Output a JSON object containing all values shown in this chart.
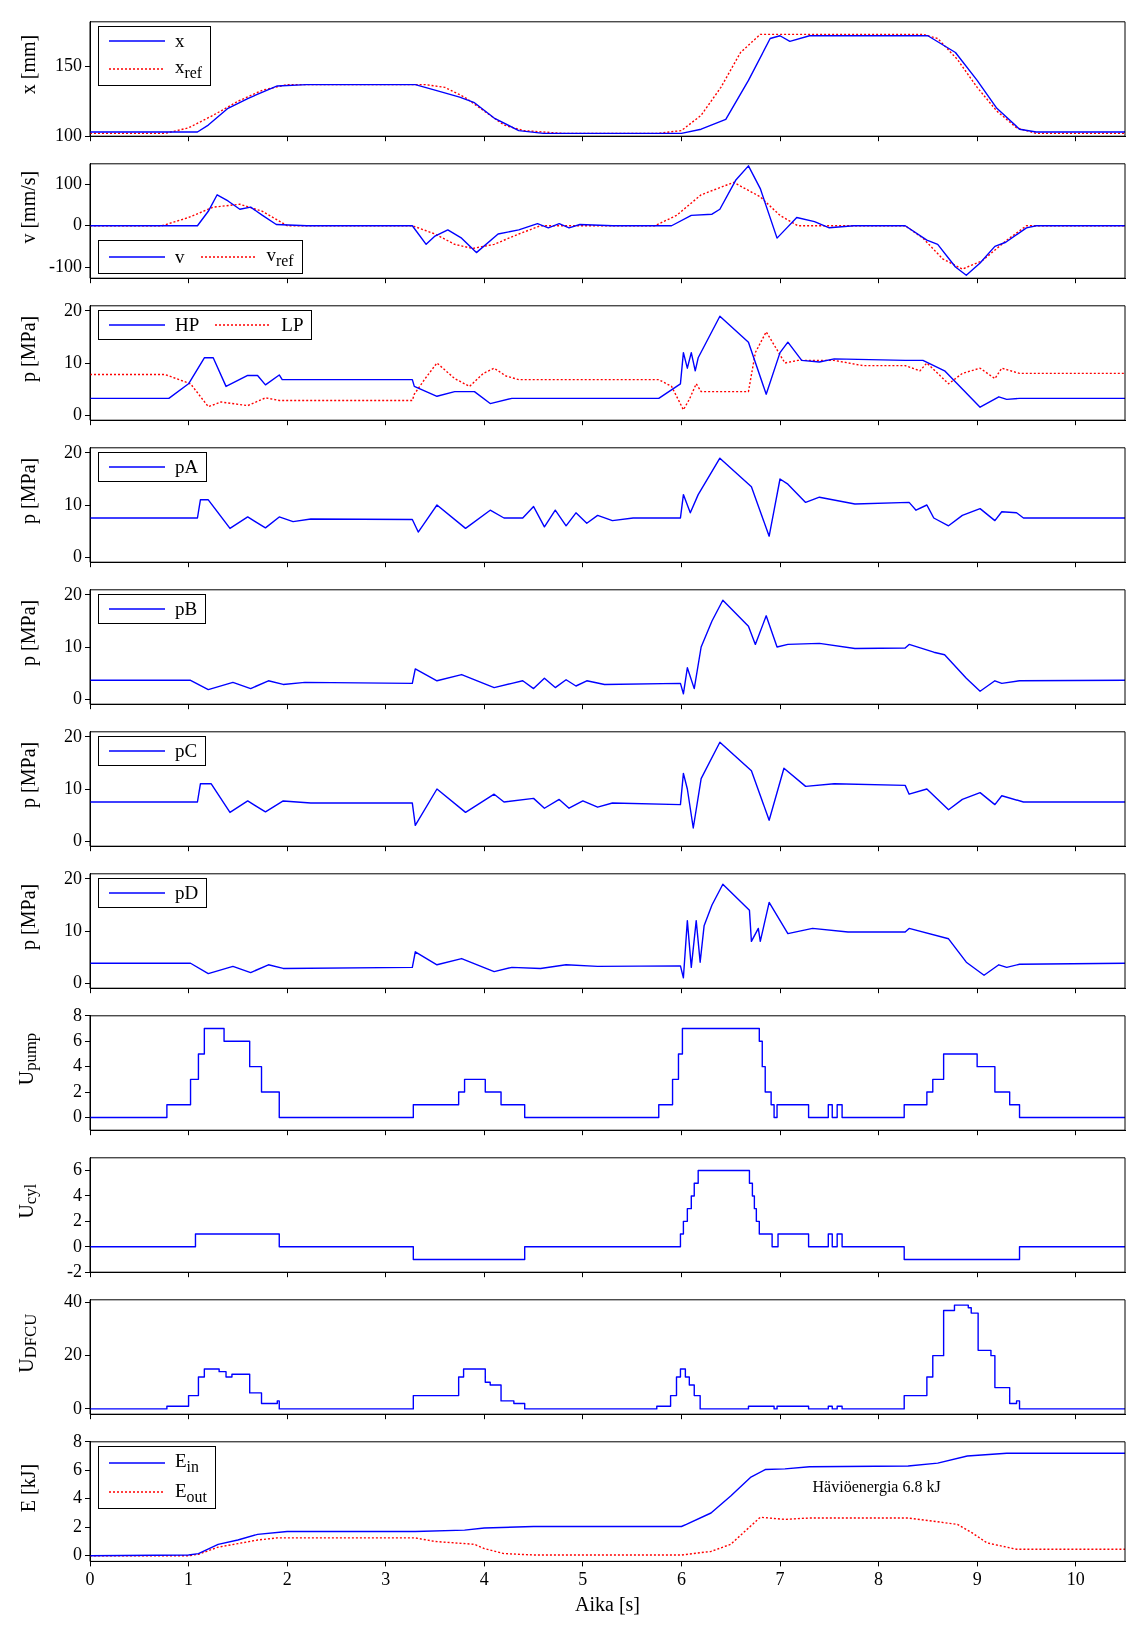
{
  "chart_data": [
    {
      "type": "line",
      "ylabel": "x [mm]",
      "xlim": [
        0,
        10.5
      ],
      "xticks": [
        0,
        1,
        2,
        3,
        4,
        5,
        6,
        7,
        8,
        9,
        10
      ],
      "ylim": [
        100,
        182
      ],
      "yticks": [
        100,
        150
      ],
      "tick_labels": "y",
      "legend": "top left",
      "series": [
        {
          "name": "x",
          "color": "#0000ff",
          "line_style": "solid",
          "x": [
            0,
            1.09,
            1.2,
            1.4,
            1.6,
            1.9,
            2.2,
            3.3,
            3.5,
            3.75,
            3.9,
            4.1,
            4.35,
            4.6,
            5.0,
            6.0,
            6.2,
            6.45,
            6.68,
            6.9,
            7.0,
            7.1,
            7.3,
            8.5,
            8.78,
            9.0,
            9.2,
            9.43,
            9.6,
            10.5
          ],
          "values": [
            103,
            103,
            108,
            120,
            127,
            136,
            137,
            137,
            133,
            128,
            124,
            113,
            104,
            102,
            102,
            102,
            105,
            112,
            140,
            170,
            172,
            168,
            172,
            172,
            160,
            140,
            120,
            105,
            103,
            103
          ]
        },
        {
          "name": "x$_{ref}$",
          "color": "#ff0000",
          "line_style": "dotted",
          "x": [
            0,
            0.76,
            1.0,
            1.25,
            1.5,
            1.75,
            2.0,
            3.4,
            3.6,
            3.8,
            4.0,
            4.2,
            4.4,
            4.8,
            5.75,
            6.0,
            6.2,
            6.4,
            6.6,
            6.8,
            8.45,
            8.6,
            8.8,
            9.0,
            9.2,
            9.4,
            9.6,
            10.5
          ],
          "values": [
            102,
            102,
            106,
            115,
            125,
            133,
            137,
            137,
            135,
            128,
            118,
            108,
            104,
            102,
            102,
            104,
            115,
            135,
            160,
            173,
            173,
            170,
            155,
            135,
            118,
            106,
            102,
            102
          ]
        }
      ]
    },
    {
      "type": "line",
      "ylabel": "v [mm/s]",
      "xlim": [
        0,
        10.5
      ],
      "xticks": [
        0,
        1,
        2,
        3,
        4,
        5,
        6,
        7,
        8,
        9,
        10
      ],
      "ylim": [
        -127,
        150
      ],
      "yticks": [
        -100,
        0,
        100
      ],
      "tick_labels": "y",
      "legend": "bottom left",
      "series": [
        {
          "name": "v",
          "color": "#0000ff",
          "line_style": "solid",
          "x": [
            0,
            1.09,
            1.2,
            1.29,
            1.4,
            1.52,
            1.63,
            1.75,
            1.89,
            2.2,
            3.27,
            3.41,
            3.5,
            3.63,
            3.77,
            3.92,
            4.14,
            4.35,
            4.54,
            4.65,
            4.76,
            4.86,
            4.97,
            5.3,
            5.9,
            6.1,
            6.31,
            6.39,
            6.55,
            6.68,
            6.8,
            6.97,
            7.05,
            7.17,
            7.35,
            7.5,
            7.75,
            8.27,
            8.49,
            8.6,
            8.78,
            8.89,
            9.03,
            9.18,
            9.29,
            9.5,
            9.6,
            10.5
          ],
          "values": [
            0,
            0,
            35,
            75,
            60,
            40,
            45,
            25,
            3,
            0,
            0,
            -45,
            -25,
            -10,
            -30,
            -65,
            -20,
            -10,
            5,
            -5,
            5,
            -5,
            3,
            0,
            0,
            25,
            28,
            40,
            110,
            145,
            90,
            -30,
            -10,
            20,
            10,
            -5,
            0,
            0,
            -35,
            -45,
            -100,
            -120,
            -90,
            -50,
            -40,
            -5,
            0,
            0
          ]
        },
        {
          "name": "v$_{ref}$",
          "color": "#ff0000",
          "line_style": "dotted",
          "x": [
            0,
            0.73,
            1.0,
            1.25,
            1.52,
            1.75,
            2.0,
            3.27,
            3.5,
            3.7,
            3.88,
            4.1,
            4.35,
            4.57,
            5.73,
            5.95,
            6.2,
            6.53,
            6.8,
            7.0,
            7.18,
            8.27,
            8.45,
            8.65,
            8.85,
            9.05,
            9.3,
            9.5,
            10.5
          ],
          "values": [
            0,
            0,
            20,
            45,
            52,
            35,
            0,
            0,
            -20,
            -45,
            -55,
            -45,
            -20,
            0,
            0,
            25,
            75,
            105,
            70,
            25,
            0,
            0,
            -30,
            -80,
            -105,
            -85,
            -35,
            0,
            0
          ]
        }
      ]
    },
    {
      "type": "line",
      "ylabel": "p [MPa]",
      "xlim": [
        0,
        10.5
      ],
      "xticks": [
        0,
        1,
        2,
        3,
        4,
        5,
        6,
        7,
        8,
        9,
        10
      ],
      "ylim": [
        -1,
        21
      ],
      "yticks": [
        0,
        10,
        20
      ],
      "tick_labels": "y",
      "legend": "top left",
      "series": [
        {
          "name": "HP",
          "color": "#0000ff",
          "line_style": "solid",
          "x": [
            0,
            0.8,
            1.0,
            1.16,
            1.25,
            1.38,
            1.6,
            1.7,
            1.78,
            1.92,
            1.95,
            3.27,
            3.29,
            3.52,
            3.7,
            3.9,
            4.06,
            4.28,
            5.77,
            5.99,
            6.02,
            6.06,
            6.1,
            6.14,
            6.17,
            6.39,
            6.68,
            6.86,
            7.0,
            7.08,
            7.22,
            7.4,
            7.55,
            8.27,
            8.45,
            8.67,
            8.85,
            9.03,
            9.22,
            9.3,
            9.43,
            10.5
          ],
          "values": [
            3.2,
            3.2,
            6,
            11,
            11,
            5.5,
            7.6,
            7.6,
            5.8,
            7.7,
            6.8,
            6.8,
            5.5,
            3.6,
            4.5,
            4.5,
            2.2,
            3.2,
            3.2,
            6,
            12,
            9,
            12,
            8.5,
            11,
            19,
            14,
            4,
            12,
            14,
            10.5,
            10.2,
            10.8,
            10.5,
            10.5,
            8.5,
            5,
            1.5,
            3.5,
            3,
            3.2,
            3.2
          ]
        },
        {
          "name": "LP",
          "color": "#ff0000",
          "line_style": "dotted",
          "x": [
            0,
            0.76,
            1.02,
            1.2,
            1.33,
            1.6,
            1.78,
            1.92,
            3.27,
            3.29,
            3.4,
            3.52,
            3.7,
            3.85,
            3.99,
            4.1,
            4.22,
            4.35,
            5.77,
            5.9,
            6.02,
            6.08,
            6.15,
            6.2,
            6.68,
            6.75,
            6.86,
            7.05,
            7.18,
            7.55,
            7.84,
            8.27,
            8.42,
            8.49,
            8.71,
            8.85,
            9.03,
            9.18,
            9.25,
            9.43,
            10.5
          ],
          "values": [
            7.8,
            7.8,
            6,
            1.6,
            2.5,
            1.8,
            3.3,
            2.8,
            2.8,
            4,
            7,
            10,
            7,
            5.5,
            8,
            9,
            7.5,
            6.8,
            6.8,
            5.5,
            1,
            3,
            6,
            4.5,
            4.5,
            12,
            16,
            10,
            10.5,
            10.5,
            9.5,
            9.5,
            8.5,
            10,
            6,
            8,
            9,
            7,
            9,
            8,
            8
          ]
        }
      ]
    },
    {
      "type": "line",
      "ylabel": "p [MPa]",
      "xlim": [
        0,
        10.5
      ],
      "xticks": [
        0,
        1,
        2,
        3,
        4,
        5,
        6,
        7,
        8,
        9,
        10
      ],
      "ylim": [
        -1,
        21
      ],
      "yticks": [
        0,
        10,
        20
      ],
      "tick_labels": "y",
      "legend": "top left",
      "series": [
        {
          "name": "pA",
          "color": "#0000ff",
          "x": [
            0,
            1.09,
            1.12,
            1.2,
            1.42,
            1.6,
            1.78,
            1.92,
            2.06,
            2.24,
            3.27,
            3.33,
            3.52,
            3.81,
            4.06,
            4.2,
            4.39,
            4.5,
            4.61,
            4.72,
            4.83,
            4.93,
            5.04,
            5.15,
            5.3,
            5.51,
            5.99,
            6.02,
            6.09,
            6.17,
            6.39,
            6.71,
            6.89,
            7.0,
            7.08,
            7.26,
            7.4,
            7.76,
            8.31,
            8.38,
            8.49,
            8.56,
            8.71,
            8.85,
            9.03,
            9.18,
            9.25,
            9.4,
            9.47,
            10.5
          ],
          "values": [
            7.5,
            7.5,
            11,
            11,
            5.5,
            7.7,
            5.6,
            7.7,
            6.8,
            7.3,
            7.2,
            4.8,
            10,
            5.5,
            9,
            7.5,
            7.5,
            9.7,
            5.8,
            9,
            6,
            8.5,
            6.5,
            8,
            7,
            7.5,
            7.5,
            12,
            8.5,
            12,
            19,
            13.5,
            4,
            15,
            14,
            10.5,
            11.5,
            10.2,
            10.5,
            9,
            10,
            7.5,
            6,
            8,
            9.3,
            7,
            8.7,
            8.5,
            7.5,
            7.5
          ]
        }
      ]
    },
    {
      "type": "line",
      "ylabel": "p [MPa]",
      "xlim": [
        0,
        10.5
      ],
      "xticks": [
        0,
        1,
        2,
        3,
        4,
        5,
        6,
        7,
        8,
        9,
        10
      ],
      "ylim": [
        -1,
        21
      ],
      "yticks": [
        0,
        10,
        20
      ],
      "tick_labels": "y",
      "legend": "top left",
      "series": [
        {
          "name": "pB",
          "color": "#0000ff",
          "x": [
            0,
            1.02,
            1.2,
            1.45,
            1.63,
            1.81,
            1.96,
            2.18,
            3.27,
            3.3,
            3.52,
            3.77,
            4.1,
            4.28,
            4.39,
            4.5,
            4.61,
            4.72,
            4.83,
            4.93,
            5.04,
            5.22,
            5.99,
            6.02,
            6.06,
            6.13,
            6.2,
            6.31,
            6.42,
            6.68,
            6.75,
            6.86,
            6.97,
            7.08,
            7.4,
            7.76,
            8.27,
            8.31,
            8.56,
            8.67,
            8.89,
            9.03,
            9.18,
            9.25,
            9.43,
            10.5
          ],
          "values": [
            3.6,
            3.6,
            1.8,
            3.2,
            2,
            3.5,
            2.8,
            3.2,
            3,
            5.8,
            3.5,
            4.7,
            2.2,
            3,
            3.5,
            2,
            4,
            2.2,
            3.7,
            2.5,
            3.5,
            2.8,
            3,
            1,
            6,
            2,
            10,
            15,
            19,
            14,
            10.5,
            16,
            10,
            10.5,
            10.7,
            9.7,
            9.8,
            10.5,
            9,
            8.5,
            4,
            1.5,
            3.5,
            3,
            3.5,
            3.6
          ]
        }
      ]
    },
    {
      "type": "line",
      "ylabel": "p [MPa]",
      "xlim": [
        0,
        10.5
      ],
      "xticks": [
        0,
        1,
        2,
        3,
        4,
        5,
        6,
        7,
        8,
        9,
        10
      ],
      "ylim": [
        -1,
        21
      ],
      "yticks": [
        0,
        10,
        20
      ],
      "tick_labels": "y",
      "legend": "top left",
      "series": [
        {
          "name": "pC",
          "color": "#0000ff",
          "x": [
            0,
            1.09,
            1.12,
            1.23,
            1.42,
            1.6,
            1.78,
            1.96,
            2.24,
            3.27,
            3.3,
            3.52,
            3.81,
            4.1,
            4.2,
            4.5,
            4.61,
            4.76,
            4.86,
            5.0,
            5.15,
            5.3,
            5.99,
            6.02,
            6.06,
            6.12,
            6.2,
            6.39,
            6.71,
            6.89,
            7.04,
            7.26,
            7.55,
            8.27,
            8.31,
            8.49,
            8.71,
            8.85,
            9.03,
            9.18,
            9.25,
            9.47,
            10.5
          ],
          "values": [
            7.5,
            7.5,
            11,
            11,
            5.5,
            7.7,
            5.6,
            7.7,
            7.3,
            7.3,
            3,
            10,
            5.5,
            9,
            7.5,
            8.2,
            6.3,
            8,
            6.3,
            7.7,
            6.5,
            7.3,
            7,
            13,
            10,
            2.5,
            12,
            19,
            13.5,
            4,
            14,
            10.5,
            11,
            10.7,
            9,
            10,
            6,
            8,
            9.3,
            7,
            8.7,
            7.5,
            7.5
          ]
        }
      ]
    },
    {
      "type": "line",
      "ylabel": "p [MPa]",
      "xlim": [
        0,
        10.5
      ],
      "xticks": [
        0,
        1,
        2,
        3,
        4,
        5,
        6,
        7,
        8,
        9,
        10
      ],
      "ylim": [
        -1,
        21
      ],
      "yticks": [
        0,
        10,
        20
      ],
      "tick_labels": "y",
      "legend": "top left",
      "series": [
        {
          "name": "pD",
          "color": "#0000ff",
          "x": [
            0,
            1.02,
            1.2,
            1.45,
            1.63,
            1.81,
            1.96,
            3.27,
            3.3,
            3.52,
            3.77,
            4.1,
            4.28,
            4.57,
            4.83,
            5.15,
            5.99,
            6.02,
            6.06,
            6.1,
            6.15,
            6.19,
            6.23,
            6.31,
            6.42,
            6.69,
            6.71,
            6.78,
            6.8,
            6.89,
            7.08,
            7.33,
            7.69,
            8.27,
            8.31,
            8.71,
            8.89,
            9.07,
            9.22,
            9.3,
            9.43,
            10.5
          ],
          "values": [
            3.8,
            3.8,
            1.8,
            3.2,
            2,
            3.5,
            2.8,
            3,
            6,
            3.5,
            4.7,
            2.2,
            3,
            2.8,
            3.5,
            3.2,
            3.3,
            1,
            12,
            3,
            12,
            4,
            11,
            15,
            19,
            14,
            8,
            10.5,
            8,
            15.5,
            9.5,
            10.5,
            9.8,
            9.8,
            10.5,
            8.5,
            4,
            1.5,
            3.5,
            3,
            3.6,
            3.8
          ]
        }
      ]
    },
    {
      "type": "step",
      "ylabel": "U$_{pump}$",
      "xlim": [
        0,
        10.5
      ],
      "xticks": [
        0,
        1,
        2,
        3,
        4,
        5,
        6,
        7,
        8,
        9,
        10
      ],
      "ylim": [
        -1,
        8
      ],
      "yticks": [
        0,
        2,
        4,
        6,
        8
      ],
      "tick_labels": "y",
      "series": [
        {
          "color": "#0000ff",
          "x": [
            0,
            0.78,
            1.02,
            1.1,
            1.16,
            1.36,
            1.62,
            1.74,
            1.92,
            3.28,
            3.74,
            3.8,
            4.01,
            4.17,
            4.41,
            5.77,
            5.91,
            5.97,
            6.01,
            6.79,
            6.82,
            6.85,
            6.91,
            6.94,
            6.97,
            7.29,
            7.49,
            7.53,
            7.58,
            7.63,
            8.26,
            8.49,
            8.55,
            8.66,
            9.0,
            9.18,
            9.33,
            9.43,
            10.5
          ],
          "values": [
            0,
            1,
            3,
            5,
            7,
            6,
            4,
            2,
            0,
            1,
            2,
            3,
            2,
            1,
            0,
            1,
            3,
            5,
            7,
            6,
            4,
            2,
            1,
            0,
            1,
            0,
            1,
            0,
            1,
            0,
            1,
            2,
            3,
            5,
            4,
            2,
            1,
            0,
            0
          ]
        }
      ]
    },
    {
      "type": "step",
      "ylabel": "U$_{cyl}$",
      "xlim": [
        0,
        10.5
      ],
      "xticks": [
        0,
        1,
        2,
        3,
        4,
        5,
        6,
        7,
        8,
        9,
        10
      ],
      "ylim": [
        -2,
        7
      ],
      "yticks": [
        -2,
        0,
        2,
        4,
        6
      ],
      "tick_labels": "y",
      "series": [
        {
          "color": "#0000ff",
          "x": [
            0,
            1.07,
            1.92,
            3.28,
            4.41,
            5.99,
            6.02,
            6.06,
            6.1,
            6.13,
            6.17,
            6.69,
            6.72,
            6.74,
            6.76,
            6.79,
            6.92,
            6.98,
            7.29,
            7.49,
            7.53,
            7.58,
            7.63,
            8.26,
            9.43,
            10.5
          ],
          "values": [
            0,
            1,
            0,
            -1,
            0,
            1,
            2,
            3,
            4,
            5,
            6,
            5,
            4,
            3,
            2,
            1,
            0,
            1,
            0,
            1,
            0,
            1,
            0,
            -1,
            0,
            0
          ]
        }
      ]
    },
    {
      "type": "step",
      "ylabel": "U$_{DFCU}$",
      "xlim": [
        0,
        10.5
      ],
      "xticks": [
        0,
        1,
        2,
        3,
        4,
        5,
        6,
        7,
        8,
        9,
        10
      ],
      "ylim": [
        -2,
        41
      ],
      "yticks": [
        0,
        20,
        40
      ],
      "tick_labels": "y",
      "series": [
        {
          "color": "#0000ff",
          "x": [
            0,
            0.78,
            1.0,
            1.1,
            1.16,
            1.31,
            1.38,
            1.44,
            1.62,
            1.74,
            1.9,
            1.92,
            3.28,
            3.74,
            3.79,
            4.01,
            4.06,
            4.17,
            4.3,
            4.41,
            5.75,
            5.89,
            5.95,
            5.99,
            6.04,
            6.08,
            6.13,
            6.19,
            6.68,
            6.94,
            6.97,
            7.29,
            7.49,
            7.53,
            7.58,
            7.63,
            8.26,
            8.49,
            8.55,
            8.66,
            8.77,
            8.91,
            8.94,
            9.01,
            9.14,
            9.18,
            9.33,
            9.4,
            9.43,
            10.5
          ],
          "values": [
            0,
            1,
            5,
            12,
            15,
            14,
            12,
            13,
            6,
            2,
            3,
            0,
            5,
            12,
            15,
            10,
            9,
            3,
            2,
            0,
            1,
            5,
            12,
            15,
            12,
            9,
            5,
            0,
            1,
            0,
            1,
            0,
            1,
            0,
            1,
            0,
            5,
            12,
            20,
            37,
            39,
            38,
            36,
            22,
            20,
            8,
            2,
            3,
            0,
            0
          ]
        }
      ]
    },
    {
      "type": "line",
      "ylabel": "E [kJ]",
      "xlabel": "Aika [s]",
      "xlim": [
        0,
        10.5
      ],
      "xticks": [
        0,
        1,
        2,
        3,
        4,
        5,
        6,
        7,
        8,
        9,
        10
      ],
      "ylim": [
        -0.4,
        8
      ],
      "yticks": [
        0,
        2,
        4,
        6,
        8
      ],
      "legend": "top left",
      "annotations": [
        "Häviöenergia 6.8 kJ"
      ],
      "series": [
        {
          "name": "E$_{in}$",
          "color": "#0000ff",
          "line_style": "solid",
          "x": [
            0,
            1.0,
            1.1,
            1.3,
            1.5,
            1.7,
            2.0,
            3.3,
            3.8,
            4.0,
            4.5,
            6.0,
            6.05,
            6.3,
            6.5,
            6.7,
            6.85,
            7.05,
            7.3,
            8.3,
            8.6,
            8.9,
            9.3,
            10.5
          ],
          "values": [
            0,
            0.05,
            0.15,
            0.8,
            1.1,
            1.5,
            1.7,
            1.7,
            1.8,
            1.95,
            2.05,
            2.05,
            2.2,
            3.0,
            4.2,
            5.5,
            6.05,
            6.1,
            6.25,
            6.3,
            6.5,
            7.0,
            7.2,
            7.2
          ]
        },
        {
          "name": "E$_{out}$",
          "color": "#ff0000",
          "line_style": "dotted",
          "x": [
            0,
            1.0,
            1.1,
            1.3,
            1.5,
            1.7,
            1.9,
            3.3,
            3.5,
            3.9,
            4.0,
            4.2,
            4.5,
            6.0,
            6.3,
            6.5,
            6.8,
            7.05,
            7.3,
            8.3,
            8.8,
            8.95,
            9.1,
            9.4,
            10.5
          ],
          "values": [
            0,
            0,
            0.1,
            0.6,
            0.85,
            1.1,
            1.25,
            1.25,
            1.0,
            0.8,
            0.5,
            0.15,
            0.05,
            0.05,
            0.3,
            0.8,
            2.7,
            2.55,
            2.65,
            2.65,
            2.2,
            1.6,
            0.9,
            0.45,
            0.45
          ]
        }
      ]
    }
  ]
}
